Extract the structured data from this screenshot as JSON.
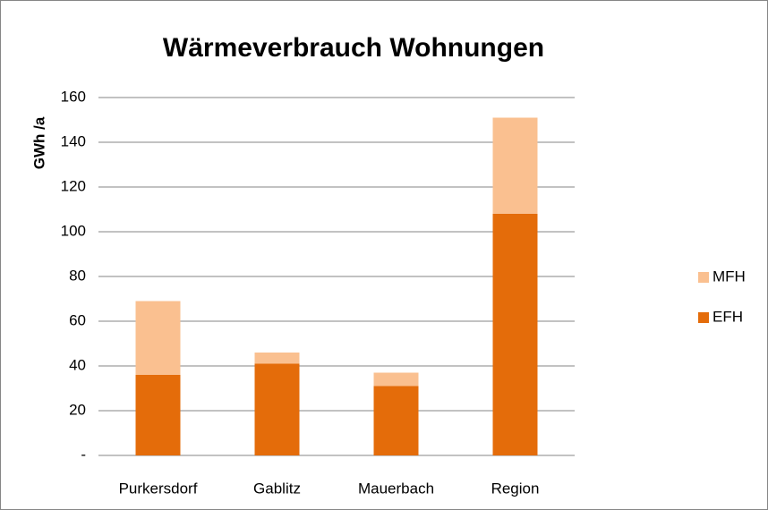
{
  "chart_data": {
    "type": "stacked_bar",
    "title": "Wärmeverbrauch Wohnungen",
    "y_label": "GWh /a",
    "categories": [
      "Purkersdorf",
      "Gablitz",
      "Mauerbach",
      "Region"
    ],
    "series": [
      {
        "name": "EFH",
        "color": "#e46c0a",
        "values": [
          36,
          41,
          31,
          108
        ]
      },
      {
        "name": "MFH",
        "color": "#fac090",
        "values": [
          33,
          5,
          6,
          43
        ]
      }
    ],
    "ylim": [
      0,
      160
    ],
    "yticks": [
      {
        "value": 0,
        "label": "-"
      },
      20,
      40,
      60,
      80,
      100,
      120,
      140,
      160
    ],
    "grid": true,
    "legend": "right"
  }
}
